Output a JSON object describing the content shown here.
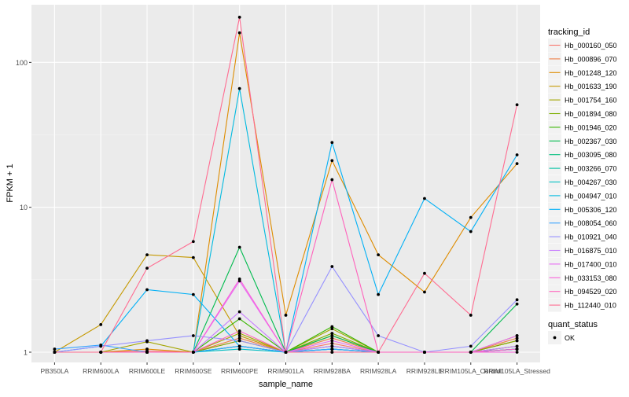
{
  "chart_data": {
    "type": "line",
    "xlabel": "sample_name",
    "ylabel": "FPKM + 1",
    "yscale": "log10",
    "ylim": [
      0.85,
      250
    ],
    "yticks": [
      1,
      10,
      100
    ],
    "ytick_labels": [
      "1",
      "10",
      "100"
    ],
    "grid": true,
    "legend_placement": "right",
    "categories": [
      "PB350LA",
      "RRIM600LA",
      "RRIM600LE",
      "RRIM600SE",
      "RRIM600PE",
      "RRIM901LA",
      "RRIM928BA",
      "RRIM928LA",
      "RRIM928LE",
      "RRIM105LA_Control",
      "RRIM105LA_Stressed"
    ],
    "legend_color": {
      "title": "tracking_id",
      "entries": [
        {
          "label": "Hb_000160_050",
          "color": "#F8766D"
        },
        {
          "label": "Hb_000896_070",
          "color": "#EF7F49"
        },
        {
          "label": "Hb_001248_120",
          "color": "#DE8C00"
        },
        {
          "label": "Hb_001633_190",
          "color": "#C59900"
        },
        {
          "label": "Hb_001754_160",
          "color": "#A3A500"
        },
        {
          "label": "Hb_001894_080",
          "color": "#7CAE00"
        },
        {
          "label": "Hb_001946_020",
          "color": "#39B600"
        },
        {
          "label": "Hb_002367_030",
          "color": "#00BB4E"
        },
        {
          "label": "Hb_003095_080",
          "color": "#00BF7D"
        },
        {
          "label": "Hb_003266_070",
          "color": "#00C1A3"
        },
        {
          "label": "Hb_004267_030",
          "color": "#00BFC4"
        },
        {
          "label": "Hb_004947_010",
          "color": "#00BAE0"
        },
        {
          "label": "Hb_005306_120",
          "color": "#00B0F6"
        },
        {
          "label": "Hb_008054_060",
          "color": "#35A2FF"
        },
        {
          "label": "Hb_010921_040",
          "color": "#9590FF"
        },
        {
          "label": "Hb_016875_010",
          "color": "#C77CFF"
        },
        {
          "label": "Hb_017400_010",
          "color": "#E76BF3"
        },
        {
          "label": "Hb_033153_080",
          "color": "#FA62DB"
        },
        {
          "label": "Hb_094529_020",
          "color": "#FF62BC"
        },
        {
          "label": "Hb_112440_010",
          "color": "#FF6C91"
        }
      ]
    },
    "legend_shape": {
      "title": "quant_status",
      "entries": [
        {
          "label": "OK"
        }
      ]
    },
    "series": [
      {
        "name": "Hb_000160_050",
        "color": "#F8766D",
        "values": [
          1.0,
          1.0,
          1.02,
          1.0,
          1.2,
          1.0,
          1.15,
          1.0,
          1.0,
          1.0,
          1.2
        ]
      },
      {
        "name": "Hb_000896_070",
        "color": "#EF7F49",
        "values": [
          1.0,
          1.0,
          1.0,
          1.0,
          1.25,
          1.0,
          1.25,
          1.0,
          1.0,
          1.0,
          1.25
        ]
      },
      {
        "name": "Hb_001248_120",
        "color": "#DE8C00",
        "values": [
          1.0,
          1.0,
          1.05,
          1.0,
          160,
          1.8,
          21,
          4.7,
          2.6,
          8.5,
          20
        ]
      },
      {
        "name": "Hb_001633_190",
        "color": "#C59900",
        "values": [
          1.0,
          1.55,
          4.7,
          4.5,
          1.3,
          1.0,
          1.3,
          1.0,
          1.0,
          1.0,
          1.2
        ]
      },
      {
        "name": "Hb_001754_160",
        "color": "#A3A500",
        "values": [
          1.0,
          1.0,
          1.18,
          1.0,
          1.35,
          1.0,
          1.45,
          1.0,
          1.0,
          1.0,
          1.3
        ]
      },
      {
        "name": "Hb_001894_080",
        "color": "#7CAE00",
        "values": [
          1.0,
          1.0,
          1.0,
          1.0,
          1.2,
          1.0,
          1.35,
          1.0,
          1.0,
          1.0,
          1.2
        ]
      },
      {
        "name": "Hb_001946_020",
        "color": "#39B600",
        "values": [
          1.0,
          1.0,
          1.0,
          1.0,
          1.7,
          1.0,
          1.5,
          1.0,
          1.0,
          1.0,
          1.1
        ]
      },
      {
        "name": "Hb_002367_030",
        "color": "#00BB4E",
        "values": [
          1.0,
          1.0,
          1.0,
          1.0,
          5.3,
          1.0,
          1.3,
          1.0,
          1.0,
          1.0,
          2.15
        ]
      },
      {
        "name": "Hb_003095_080",
        "color": "#00BF7D",
        "values": [
          1.0,
          1.0,
          1.0,
          1.0,
          1.1,
          1.0,
          1.1,
          1.0,
          1.0,
          1.0,
          1.05
        ]
      },
      {
        "name": "Hb_003266_070",
        "color": "#00C1A3",
        "values": [
          1.0,
          1.0,
          1.0,
          1.0,
          1.1,
          1.0,
          1.05,
          1.0,
          1.0,
          1.0,
          1.05
        ]
      },
      {
        "name": "Hb_004267_030",
        "color": "#00BFC4",
        "values": [
          1.0,
          1.0,
          1.0,
          1.0,
          1.05,
          1.0,
          1.05,
          1.0,
          1.0,
          1.0,
          1.05
        ]
      },
      {
        "name": "Hb_004947_010",
        "color": "#00BAE0",
        "values": [
          1.0,
          1.0,
          1.0,
          1.0,
          66,
          1.0,
          1.05,
          1.0,
          1.0,
          1.0,
          1.05
        ]
      },
      {
        "name": "Hb_005306_120",
        "color": "#00B0F6",
        "values": [
          1.0,
          1.1,
          2.7,
          2.5,
          1.1,
          1.0,
          28,
          2.5,
          11.5,
          6.8,
          23
        ]
      },
      {
        "name": "Hb_008054_060",
        "color": "#35A2FF",
        "values": [
          1.05,
          1.12,
          1.0,
          1.0,
          1.1,
          1.0,
          1.05,
          1.0,
          1.0,
          1.0,
          1.05
        ]
      },
      {
        "name": "Hb_010921_040",
        "color": "#9590FF",
        "values": [
          1.0,
          1.1,
          1.2,
          1.3,
          1.2,
          1.0,
          3.9,
          1.3,
          1.0,
          1.1,
          2.3
        ]
      },
      {
        "name": "Hb_016875_010",
        "color": "#C77CFF",
        "values": [
          1.0,
          1.0,
          1.0,
          1.0,
          1.9,
          1.0,
          1.1,
          1.0,
          1.0,
          1.0,
          1.1
        ]
      },
      {
        "name": "Hb_017400_010",
        "color": "#E76BF3",
        "values": [
          1.0,
          1.0,
          1.0,
          1.0,
          3.1,
          1.0,
          1.2,
          1.0,
          1.0,
          1.0,
          1.3
        ]
      },
      {
        "name": "Hb_033153_080",
        "color": "#FA62DB",
        "values": [
          1.0,
          1.0,
          1.0,
          1.0,
          3.2,
          1.0,
          1.0,
          1.0,
          1.0,
          1.0,
          1.0
        ]
      },
      {
        "name": "Hb_094529_020",
        "color": "#FF62BC",
        "values": [
          1.0,
          1.0,
          1.0,
          1.0,
          1.4,
          1.0,
          15.5,
          1.0,
          1.0,
          1.0,
          1.05
        ]
      },
      {
        "name": "Hb_112440_010",
        "color": "#FF6C91",
        "values": [
          1.0,
          1.0,
          3.8,
          5.8,
          205,
          1.0,
          1.0,
          1.0,
          3.5,
          1.8,
          51
        ]
      }
    ]
  }
}
